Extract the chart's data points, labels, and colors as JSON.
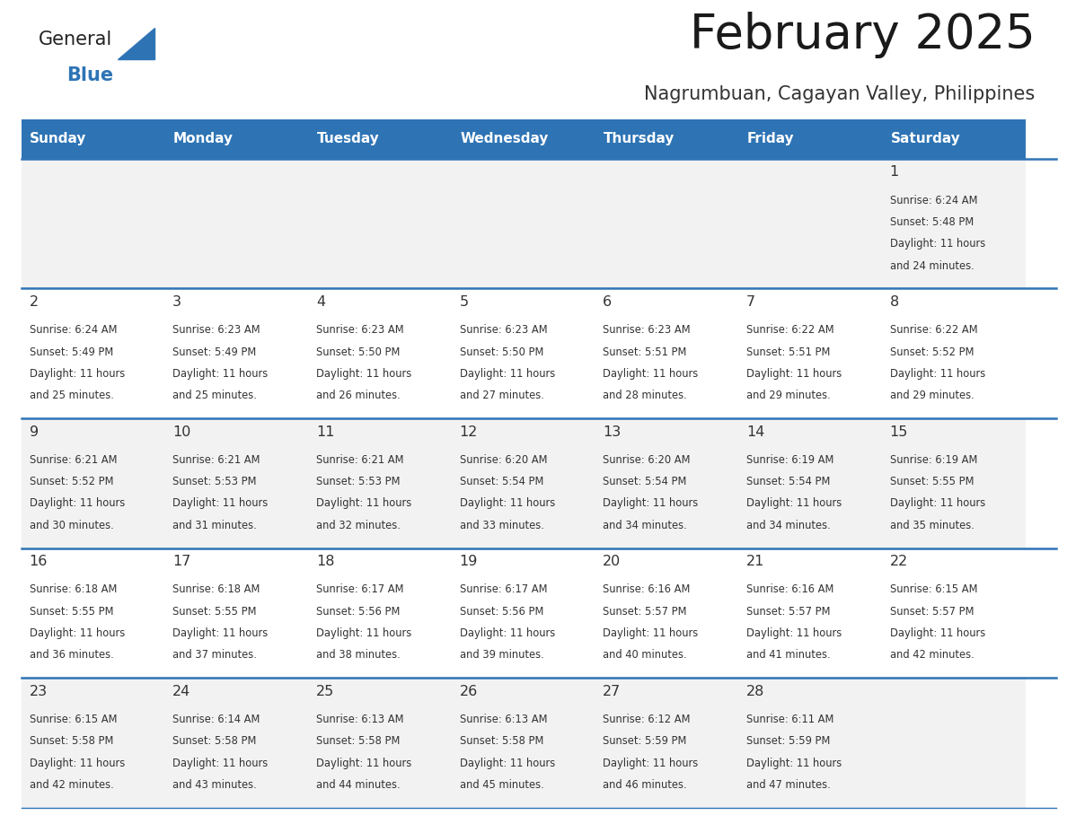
{
  "title": "February 2025",
  "subtitle": "Nagrumbuan, Cagayan Valley, Philippines",
  "days_of_week": [
    "Sunday",
    "Monday",
    "Tuesday",
    "Wednesday",
    "Thursday",
    "Friday",
    "Saturday"
  ],
  "header_bg": "#2E74B5",
  "header_text": "#FFFFFF",
  "row_bg_odd": "#F2F2F2",
  "row_bg_even": "#FFFFFF",
  "cell_text": "#333333",
  "divider_color": "#2E74B5",
  "logo_general_color": "#222222",
  "logo_blue_color": "#2E74B5",
  "calendar_data": [
    [
      null,
      null,
      null,
      null,
      null,
      null,
      {
        "day": 1,
        "sunrise": "6:24 AM",
        "sunset": "5:48 PM",
        "daylight": "11 hours and 24 minutes."
      }
    ],
    [
      {
        "day": 2,
        "sunrise": "6:24 AM",
        "sunset": "5:49 PM",
        "daylight": "11 hours and 25 minutes."
      },
      {
        "day": 3,
        "sunrise": "6:23 AM",
        "sunset": "5:49 PM",
        "daylight": "11 hours and 25 minutes."
      },
      {
        "day": 4,
        "sunrise": "6:23 AM",
        "sunset": "5:50 PM",
        "daylight": "11 hours and 26 minutes."
      },
      {
        "day": 5,
        "sunrise": "6:23 AM",
        "sunset": "5:50 PM",
        "daylight": "11 hours and 27 minutes."
      },
      {
        "day": 6,
        "sunrise": "6:23 AM",
        "sunset": "5:51 PM",
        "daylight": "11 hours and 28 minutes."
      },
      {
        "day": 7,
        "sunrise": "6:22 AM",
        "sunset": "5:51 PM",
        "daylight": "11 hours and 29 minutes."
      },
      {
        "day": 8,
        "sunrise": "6:22 AM",
        "sunset": "5:52 PM",
        "daylight": "11 hours and 29 minutes."
      }
    ],
    [
      {
        "day": 9,
        "sunrise": "6:21 AM",
        "sunset": "5:52 PM",
        "daylight": "11 hours and 30 minutes."
      },
      {
        "day": 10,
        "sunrise": "6:21 AM",
        "sunset": "5:53 PM",
        "daylight": "11 hours and 31 minutes."
      },
      {
        "day": 11,
        "sunrise": "6:21 AM",
        "sunset": "5:53 PM",
        "daylight": "11 hours and 32 minutes."
      },
      {
        "day": 12,
        "sunrise": "6:20 AM",
        "sunset": "5:54 PM",
        "daylight": "11 hours and 33 minutes."
      },
      {
        "day": 13,
        "sunrise": "6:20 AM",
        "sunset": "5:54 PM",
        "daylight": "11 hours and 34 minutes."
      },
      {
        "day": 14,
        "sunrise": "6:19 AM",
        "sunset": "5:54 PM",
        "daylight": "11 hours and 34 minutes."
      },
      {
        "day": 15,
        "sunrise": "6:19 AM",
        "sunset": "5:55 PM",
        "daylight": "11 hours and 35 minutes."
      }
    ],
    [
      {
        "day": 16,
        "sunrise": "6:18 AM",
        "sunset": "5:55 PM",
        "daylight": "11 hours and 36 minutes."
      },
      {
        "day": 17,
        "sunrise": "6:18 AM",
        "sunset": "5:55 PM",
        "daylight": "11 hours and 37 minutes."
      },
      {
        "day": 18,
        "sunrise": "6:17 AM",
        "sunset": "5:56 PM",
        "daylight": "11 hours and 38 minutes."
      },
      {
        "day": 19,
        "sunrise": "6:17 AM",
        "sunset": "5:56 PM",
        "daylight": "11 hours and 39 minutes."
      },
      {
        "day": 20,
        "sunrise": "6:16 AM",
        "sunset": "5:57 PM",
        "daylight": "11 hours and 40 minutes."
      },
      {
        "day": 21,
        "sunrise": "6:16 AM",
        "sunset": "5:57 PM",
        "daylight": "11 hours and 41 minutes."
      },
      {
        "day": 22,
        "sunrise": "6:15 AM",
        "sunset": "5:57 PM",
        "daylight": "11 hours and 42 minutes."
      }
    ],
    [
      {
        "day": 23,
        "sunrise": "6:15 AM",
        "sunset": "5:58 PM",
        "daylight": "11 hours and 42 minutes."
      },
      {
        "day": 24,
        "sunrise": "6:14 AM",
        "sunset": "5:58 PM",
        "daylight": "11 hours and 43 minutes."
      },
      {
        "day": 25,
        "sunrise": "6:13 AM",
        "sunset": "5:58 PM",
        "daylight": "11 hours and 44 minutes."
      },
      {
        "day": 26,
        "sunrise": "6:13 AM",
        "sunset": "5:58 PM",
        "daylight": "11 hours and 45 minutes."
      },
      {
        "day": 27,
        "sunrise": "6:12 AM",
        "sunset": "5:59 PM",
        "daylight": "11 hours and 46 minutes."
      },
      {
        "day": 28,
        "sunrise": "6:11 AM",
        "sunset": "5:59 PM",
        "daylight": "11 hours and 47 minutes."
      },
      null
    ]
  ]
}
